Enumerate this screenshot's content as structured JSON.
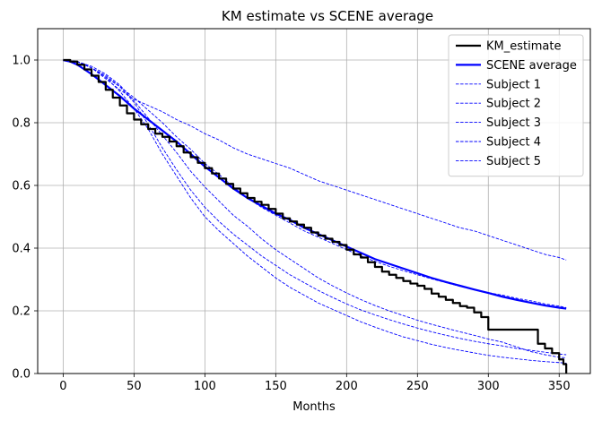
{
  "chart_data": {
    "type": "line",
    "title": "KM estimate vs SCENE average",
    "xlabel": "Months",
    "ylabel": "",
    "xlim": [
      -18,
      372
    ],
    "ylim": [
      0,
      1.1
    ],
    "xticks": [
      0,
      50,
      100,
      150,
      200,
      250,
      300,
      350
    ],
    "yticks": [
      0.0,
      0.2,
      0.4,
      0.6,
      0.8,
      1.0
    ],
    "xtick_labels": [
      "0",
      "50",
      "100",
      "150",
      "200",
      "250",
      "300",
      "350"
    ],
    "ytick_labels": [
      "0.0",
      "0.2",
      "0.4",
      "0.6",
      "0.8",
      "1.0"
    ],
    "grid": true,
    "legend_position": "top-right",
    "series": [
      {
        "name": "KM_estimate",
        "color": "#000000",
        "style": "solid",
        "step": true,
        "points": [
          [
            0,
            1.0
          ],
          [
            5,
            0.995
          ],
          [
            10,
            0.985
          ],
          [
            15,
            0.97
          ],
          [
            20,
            0.95
          ],
          [
            25,
            0.93
          ],
          [
            30,
            0.905
          ],
          [
            35,
            0.88
          ],
          [
            40,
            0.855
          ],
          [
            45,
            0.83
          ],
          [
            50,
            0.81
          ],
          [
            55,
            0.795
          ],
          [
            60,
            0.78
          ],
          [
            65,
            0.765
          ],
          [
            70,
            0.755
          ],
          [
            75,
            0.74
          ],
          [
            80,
            0.725
          ],
          [
            85,
            0.705
          ],
          [
            90,
            0.69
          ],
          [
            95,
            0.672
          ],
          [
            100,
            0.655
          ],
          [
            105,
            0.638
          ],
          [
            110,
            0.622
          ],
          [
            115,
            0.605
          ],
          [
            120,
            0.59
          ],
          [
            125,
            0.575
          ],
          [
            130,
            0.56
          ],
          [
            135,
            0.548
          ],
          [
            140,
            0.538
          ],
          [
            145,
            0.525
          ],
          [
            150,
            0.51
          ],
          [
            155,
            0.495
          ],
          [
            160,
            0.485
          ],
          [
            165,
            0.475
          ],
          [
            170,
            0.465
          ],
          [
            175,
            0.45
          ],
          [
            180,
            0.44
          ],
          [
            185,
            0.43
          ],
          [
            190,
            0.42
          ],
          [
            195,
            0.41
          ],
          [
            200,
            0.395
          ],
          [
            205,
            0.38
          ],
          [
            210,
            0.37
          ],
          [
            215,
            0.355
          ],
          [
            220,
            0.34
          ],
          [
            225,
            0.325
          ],
          [
            230,
            0.315
          ],
          [
            235,
            0.305
          ],
          [
            240,
            0.295
          ],
          [
            245,
            0.287
          ],
          [
            250,
            0.28
          ],
          [
            255,
            0.27
          ],
          [
            260,
            0.255
          ],
          [
            265,
            0.245
          ],
          [
            270,
            0.235
          ],
          [
            275,
            0.225
          ],
          [
            280,
            0.215
          ],
          [
            285,
            0.21
          ],
          [
            290,
            0.195
          ],
          [
            295,
            0.18
          ],
          [
            300,
            0.14
          ],
          [
            305,
            0.14
          ],
          [
            310,
            0.14
          ],
          [
            315,
            0.14
          ],
          [
            320,
            0.14
          ],
          [
            325,
            0.14
          ],
          [
            330,
            0.14
          ],
          [
            335,
            0.095
          ],
          [
            340,
            0.08
          ],
          [
            345,
            0.065
          ],
          [
            350,
            0.045
          ],
          [
            353,
            0.03
          ],
          [
            355,
            0.0
          ]
        ]
      },
      {
        "name": "SCENE average",
        "color": "#0000ff",
        "style": "solid",
        "step": false,
        "points": [
          [
            0,
            1.0
          ],
          [
            5,
            0.995
          ],
          [
            10,
            0.985
          ],
          [
            20,
            0.955
          ],
          [
            30,
            0.92
          ],
          [
            40,
            0.885
          ],
          [
            50,
            0.845
          ],
          [
            60,
            0.81
          ],
          [
            70,
            0.775
          ],
          [
            80,
            0.74
          ],
          [
            90,
            0.7
          ],
          [
            100,
            0.66
          ],
          [
            110,
            0.625
          ],
          [
            120,
            0.59
          ],
          [
            130,
            0.56
          ],
          [
            140,
            0.535
          ],
          [
            150,
            0.51
          ],
          [
            160,
            0.49
          ],
          [
            170,
            0.465
          ],
          [
            180,
            0.445
          ],
          [
            190,
            0.425
          ],
          [
            200,
            0.405
          ],
          [
            210,
            0.385
          ],
          [
            220,
            0.365
          ],
          [
            230,
            0.35
          ],
          [
            240,
            0.335
          ],
          [
            250,
            0.32
          ],
          [
            260,
            0.305
          ],
          [
            270,
            0.292
          ],
          [
            280,
            0.28
          ],
          [
            290,
            0.268
          ],
          [
            300,
            0.257
          ],
          [
            310,
            0.245
          ],
          [
            320,
            0.235
          ],
          [
            330,
            0.226
          ],
          [
            340,
            0.217
          ],
          [
            350,
            0.21
          ],
          [
            355,
            0.207
          ]
        ]
      },
      {
        "name": "Subject 1",
        "color": "#0000ff",
        "style": "dashed",
        "step": false,
        "points": [
          [
            0,
            1.0
          ],
          [
            10,
            0.995
          ],
          [
            20,
            0.975
          ],
          [
            30,
            0.94
          ],
          [
            40,
            0.905
          ],
          [
            50,
            0.875
          ],
          [
            60,
            0.855
          ],
          [
            70,
            0.835
          ],
          [
            80,
            0.81
          ],
          [
            90,
            0.79
          ],
          [
            100,
            0.765
          ],
          [
            110,
            0.745
          ],
          [
            120,
            0.72
          ],
          [
            130,
            0.7
          ],
          [
            140,
            0.685
          ],
          [
            150,
            0.67
          ],
          [
            160,
            0.655
          ],
          [
            170,
            0.635
          ],
          [
            180,
            0.615
          ],
          [
            190,
            0.6
          ],
          [
            200,
            0.585
          ],
          [
            210,
            0.57
          ],
          [
            220,
            0.555
          ],
          [
            230,
            0.54
          ],
          [
            240,
            0.525
          ],
          [
            250,
            0.51
          ],
          [
            260,
            0.495
          ],
          [
            270,
            0.48
          ],
          [
            280,
            0.465
          ],
          [
            290,
            0.455
          ],
          [
            300,
            0.44
          ],
          [
            310,
            0.425
          ],
          [
            320,
            0.41
          ],
          [
            330,
            0.395
          ],
          [
            340,
            0.38
          ],
          [
            350,
            0.37
          ],
          [
            355,
            0.362
          ]
        ]
      },
      {
        "name": "Subject 2",
        "color": "#0000ff",
        "style": "dashed",
        "step": false,
        "points": [
          [
            0,
            1.0
          ],
          [
            10,
            0.995
          ],
          [
            20,
            0.975
          ],
          [
            30,
            0.945
          ],
          [
            40,
            0.915
          ],
          [
            50,
            0.88
          ],
          [
            60,
            0.84
          ],
          [
            70,
            0.8
          ],
          [
            80,
            0.755
          ],
          [
            90,
            0.715
          ],
          [
            100,
            0.67
          ],
          [
            110,
            0.635
          ],
          [
            120,
            0.595
          ],
          [
            130,
            0.56
          ],
          [
            140,
            0.53
          ],
          [
            150,
            0.505
          ],
          [
            160,
            0.48
          ],
          [
            170,
            0.455
          ],
          [
            180,
            0.435
          ],
          [
            190,
            0.415
          ],
          [
            200,
            0.395
          ],
          [
            210,
            0.375
          ],
          [
            220,
            0.358
          ],
          [
            230,
            0.342
          ],
          [
            240,
            0.328
          ],
          [
            250,
            0.315
          ],
          [
            260,
            0.302
          ],
          [
            270,
            0.29
          ],
          [
            280,
            0.278
          ],
          [
            290,
            0.268
          ],
          [
            300,
            0.258
          ],
          [
            310,
            0.25
          ],
          [
            320,
            0.24
          ],
          [
            330,
            0.232
          ],
          [
            340,
            0.222
          ],
          [
            350,
            0.215
          ],
          [
            355,
            0.21
          ]
        ]
      },
      {
        "name": "Subject 3",
        "color": "#0000ff",
        "style": "dashed",
        "step": false,
        "points": [
          [
            0,
            1.0
          ],
          [
            10,
            0.995
          ],
          [
            20,
            0.975
          ],
          [
            30,
            0.95
          ],
          [
            40,
            0.915
          ],
          [
            50,
            0.865
          ],
          [
            60,
            0.795
          ],
          [
            70,
            0.72
          ],
          [
            80,
            0.65
          ],
          [
            90,
            0.585
          ],
          [
            100,
            0.53
          ],
          [
            110,
            0.485
          ],
          [
            120,
            0.445
          ],
          [
            130,
            0.41
          ],
          [
            140,
            0.375
          ],
          [
            150,
            0.345
          ],
          [
            160,
            0.315
          ],
          [
            170,
            0.29
          ],
          [
            180,
            0.265
          ],
          [
            190,
            0.243
          ],
          [
            200,
            0.222
          ],
          [
            210,
            0.203
          ],
          [
            220,
            0.187
          ],
          [
            230,
            0.172
          ],
          [
            240,
            0.158
          ],
          [
            250,
            0.145
          ],
          [
            260,
            0.133
          ],
          [
            270,
            0.122
          ],
          [
            280,
            0.112
          ],
          [
            290,
            0.103
          ],
          [
            300,
            0.095
          ],
          [
            310,
            0.088
          ],
          [
            320,
            0.08
          ],
          [
            330,
            0.074
          ],
          [
            340,
            0.068
          ],
          [
            350,
            0.062
          ],
          [
            355,
            0.06
          ]
        ]
      },
      {
        "name": "Subject 4",
        "color": "#0000ff",
        "style": "dashed",
        "step": false,
        "points": [
          [
            0,
            1.0
          ],
          [
            10,
            0.995
          ],
          [
            20,
            0.98
          ],
          [
            30,
            0.955
          ],
          [
            40,
            0.92
          ],
          [
            50,
            0.87
          ],
          [
            60,
            0.815
          ],
          [
            70,
            0.76
          ],
          [
            80,
            0.705
          ],
          [
            90,
            0.645
          ],
          [
            100,
            0.595
          ],
          [
            110,
            0.55
          ],
          [
            120,
            0.505
          ],
          [
            130,
            0.47
          ],
          [
            140,
            0.43
          ],
          [
            150,
            0.395
          ],
          [
            160,
            0.365
          ],
          [
            170,
            0.335
          ],
          [
            180,
            0.305
          ],
          [
            190,
            0.28
          ],
          [
            200,
            0.257
          ],
          [
            210,
            0.236
          ],
          [
            220,
            0.217
          ],
          [
            230,
            0.2
          ],
          [
            240,
            0.185
          ],
          [
            250,
            0.17
          ],
          [
            260,
            0.157
          ],
          [
            270,
            0.145
          ],
          [
            280,
            0.133
          ],
          [
            290,
            0.122
          ],
          [
            300,
            0.11
          ],
          [
            310,
            0.1
          ],
          [
            320,
            0.085
          ],
          [
            330,
            0.07
          ],
          [
            340,
            0.06
          ],
          [
            350,
            0.052
          ],
          [
            355,
            0.05
          ]
        ]
      },
      {
        "name": "Subject 5",
        "color": "#0000ff",
        "style": "dashed",
        "step": false,
        "points": [
          [
            0,
            1.0
          ],
          [
            10,
            0.995
          ],
          [
            20,
            0.975
          ],
          [
            30,
            0.945
          ],
          [
            40,
            0.9
          ],
          [
            50,
            0.845
          ],
          [
            60,
            0.78
          ],
          [
            70,
            0.7
          ],
          [
            80,
            0.63
          ],
          [
            90,
            0.56
          ],
          [
            100,
            0.5
          ],
          [
            110,
            0.455
          ],
          [
            120,
            0.415
          ],
          [
            130,
            0.375
          ],
          [
            140,
            0.34
          ],
          [
            150,
            0.305
          ],
          [
            160,
            0.275
          ],
          [
            170,
            0.25
          ],
          [
            180,
            0.225
          ],
          [
            190,
            0.205
          ],
          [
            200,
            0.185
          ],
          [
            210,
            0.165
          ],
          [
            220,
            0.148
          ],
          [
            230,
            0.132
          ],
          [
            240,
            0.117
          ],
          [
            250,
            0.105
          ],
          [
            260,
            0.093
          ],
          [
            270,
            0.083
          ],
          [
            280,
            0.074
          ],
          [
            290,
            0.066
          ],
          [
            300,
            0.058
          ],
          [
            310,
            0.052
          ],
          [
            320,
            0.047
          ],
          [
            330,
            0.042
          ],
          [
            340,
            0.038
          ],
          [
            350,
            0.035
          ],
          [
            355,
            0.033
          ]
        ]
      }
    ]
  }
}
